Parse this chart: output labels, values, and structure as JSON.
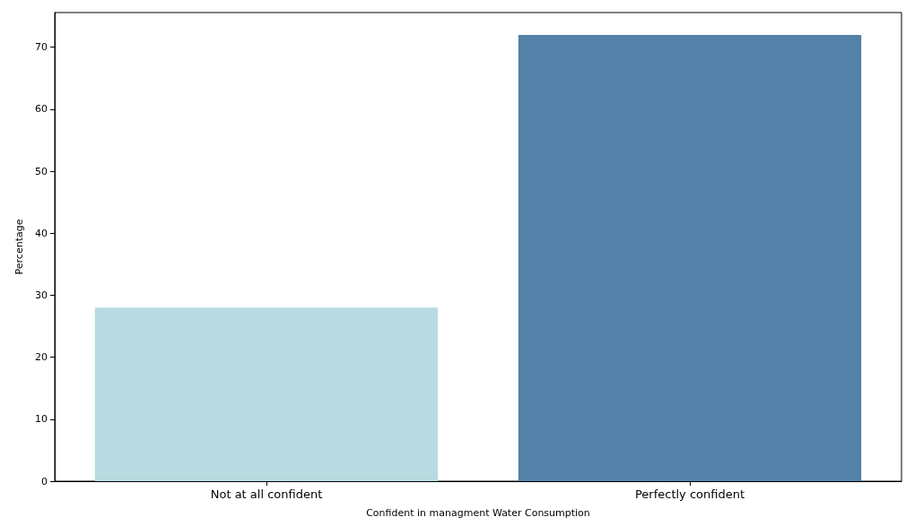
{
  "chart_data": {
    "type": "bar",
    "xlabel": "Confident in managment Water Consumption",
    "ylabel": "Percentage",
    "categories": [
      "Not at all confident",
      "Perfectly confident"
    ],
    "values": [
      28,
      72
    ],
    "colors": [
      "#b7dbe0",
      "#5381a7"
    ],
    "ylim": [
      0,
      75.6
    ],
    "yticks": [
      0,
      10,
      20,
      30,
      40,
      50,
      60,
      70
    ],
    "grid": false
  }
}
